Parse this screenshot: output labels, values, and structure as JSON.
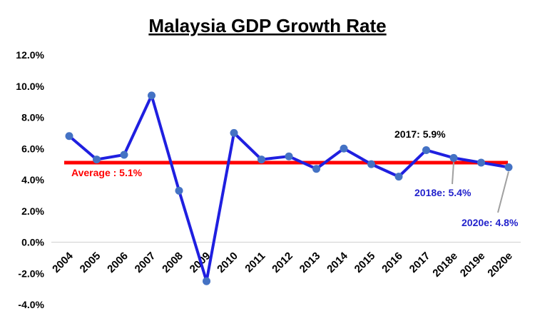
{
  "chart_data": {
    "type": "line",
    "title": "Malaysia GDP Growth Rate",
    "xlabel": "",
    "ylabel": "",
    "categories": [
      "2004",
      "2005",
      "2006",
      "2007",
      "2008",
      "2009",
      "2010",
      "2011",
      "2012",
      "2013",
      "2014",
      "2015",
      "2016",
      "2017",
      "2018e",
      "2019e",
      "2020e"
    ],
    "series": [
      {
        "name": "GDP Growth Rate",
        "color": "#1f1fe0",
        "marker_color": "#4472c4",
        "values": [
          6.8,
          5.3,
          5.6,
          9.4,
          3.3,
          -2.5,
          7.0,
          5.3,
          5.5,
          4.7,
          6.0,
          5.0,
          4.2,
          5.9,
          5.4,
          5.1,
          4.8
        ]
      }
    ],
    "reference_line": {
      "name": "Average",
      "value": 5.1,
      "color": "#ff0000"
    },
    "ylim": [
      -4,
      12
    ],
    "yticks": [
      -4,
      -2,
      0,
      2,
      4,
      6,
      8,
      10,
      12
    ],
    "ytick_labels": [
      "-4.0%",
      "-2.0%",
      "0.0%",
      "2.0%",
      "4.0%",
      "6.0%",
      "8.0%",
      "10.0%",
      "12.0%"
    ],
    "grid": false,
    "annotations": [
      {
        "text": "Average : 5.1%",
        "color": "#ff0000"
      },
      {
        "text": "2017: 5.9%",
        "color": "#000000"
      },
      {
        "text": "2018e: 5.4%",
        "color": "#2222cc"
      },
      {
        "text": "2020e: 4.8%",
        "color": "#2222cc"
      }
    ]
  }
}
